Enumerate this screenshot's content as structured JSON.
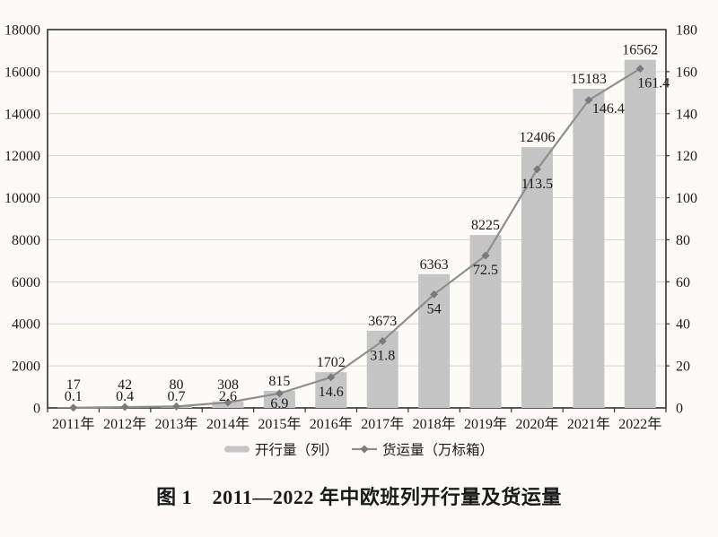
{
  "figure": {
    "caption": "图 1　2011—2022 年中欧班列开行量及货运量"
  },
  "legend": {
    "bar_label": "开行量（列）",
    "line_label": "货运量（万标箱）"
  },
  "chart_data": {
    "type": "bar",
    "subtype": "bar+line combo",
    "title": "",
    "xlabel": "",
    "ylabel_left": "开行量（列）",
    "ylabel_right": "货运量（万标箱）",
    "categories": [
      "2011年",
      "2012年",
      "2013年",
      "2014年",
      "2015年",
      "2016年",
      "2017年",
      "2018年",
      "2019年",
      "2020年",
      "2021年",
      "2022年"
    ],
    "series": [
      {
        "name": "开行量（列）",
        "type": "bar",
        "axis": "left",
        "values": [
          17,
          42,
          80,
          308,
          815,
          1702,
          3673,
          6363,
          8225,
          12406,
          15183,
          16562
        ]
      },
      {
        "name": "货运量（万标箱）",
        "type": "line",
        "axis": "right",
        "values": [
          0.1,
          0.4,
          0.7,
          2.6,
          6.9,
          14.6,
          31.8,
          54,
          72.5,
          113.5,
          146.4,
          161.4
        ]
      }
    ],
    "left_axis": {
      "min": 0,
      "max": 18000,
      "step": 2000,
      "tick_labels": [
        "0",
        "2000",
        "4000",
        "6000",
        "8000",
        "10000",
        "12000",
        "14000",
        "16000",
        "18000"
      ]
    },
    "right_axis": {
      "min": 0,
      "max": 180,
      "step": 20,
      "tick_labels": [
        "0",
        "20",
        "40",
        "60",
        "80",
        "100",
        "120",
        "140",
        "160",
        "180"
      ]
    },
    "grid": true,
    "legend_position": "bottom",
    "data_labels": true
  },
  "colors": {
    "background": "#fdfbf7",
    "bar": "#c5c5c5",
    "line": "#8f8f8f",
    "marker": "#7a7a7a",
    "grid": "#d8d5d0",
    "axis": "#333333",
    "text": "#1a1a1a"
  }
}
